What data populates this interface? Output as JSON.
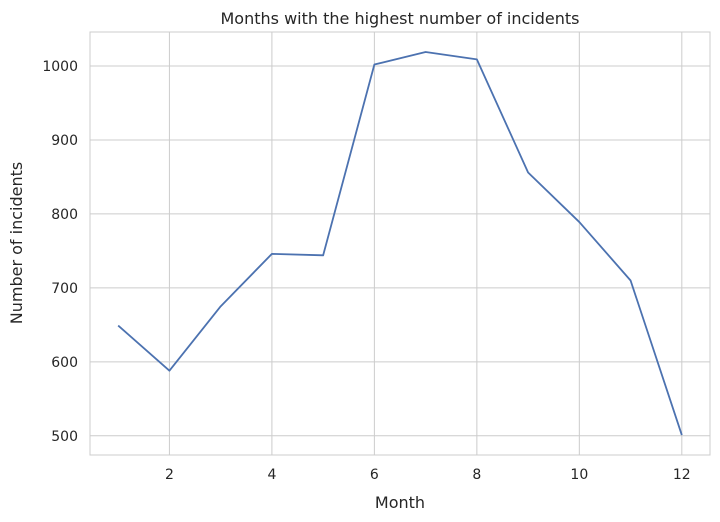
{
  "chart_data": {
    "type": "line",
    "title": "Months with the highest number of incidents",
    "xlabel": "Month",
    "ylabel": "Number of incidents",
    "xlim": [
      0.45,
      12.55
    ],
    "ylim": [
      474,
      1046
    ],
    "xticks": [
      2,
      4,
      6,
      8,
      10,
      12
    ],
    "yticks": [
      500,
      600,
      700,
      800,
      900,
      1000
    ],
    "grid": true,
    "series": [
      {
        "color": "#4c72b0",
        "x": [
          1,
          2,
          3,
          4,
          5,
          6,
          7,
          8,
          9,
          10,
          11,
          12
        ],
        "y": [
          649,
          588,
          675,
          746,
          744,
          1002,
          1019,
          1009,
          856,
          789,
          710,
          501
        ]
      }
    ]
  }
}
